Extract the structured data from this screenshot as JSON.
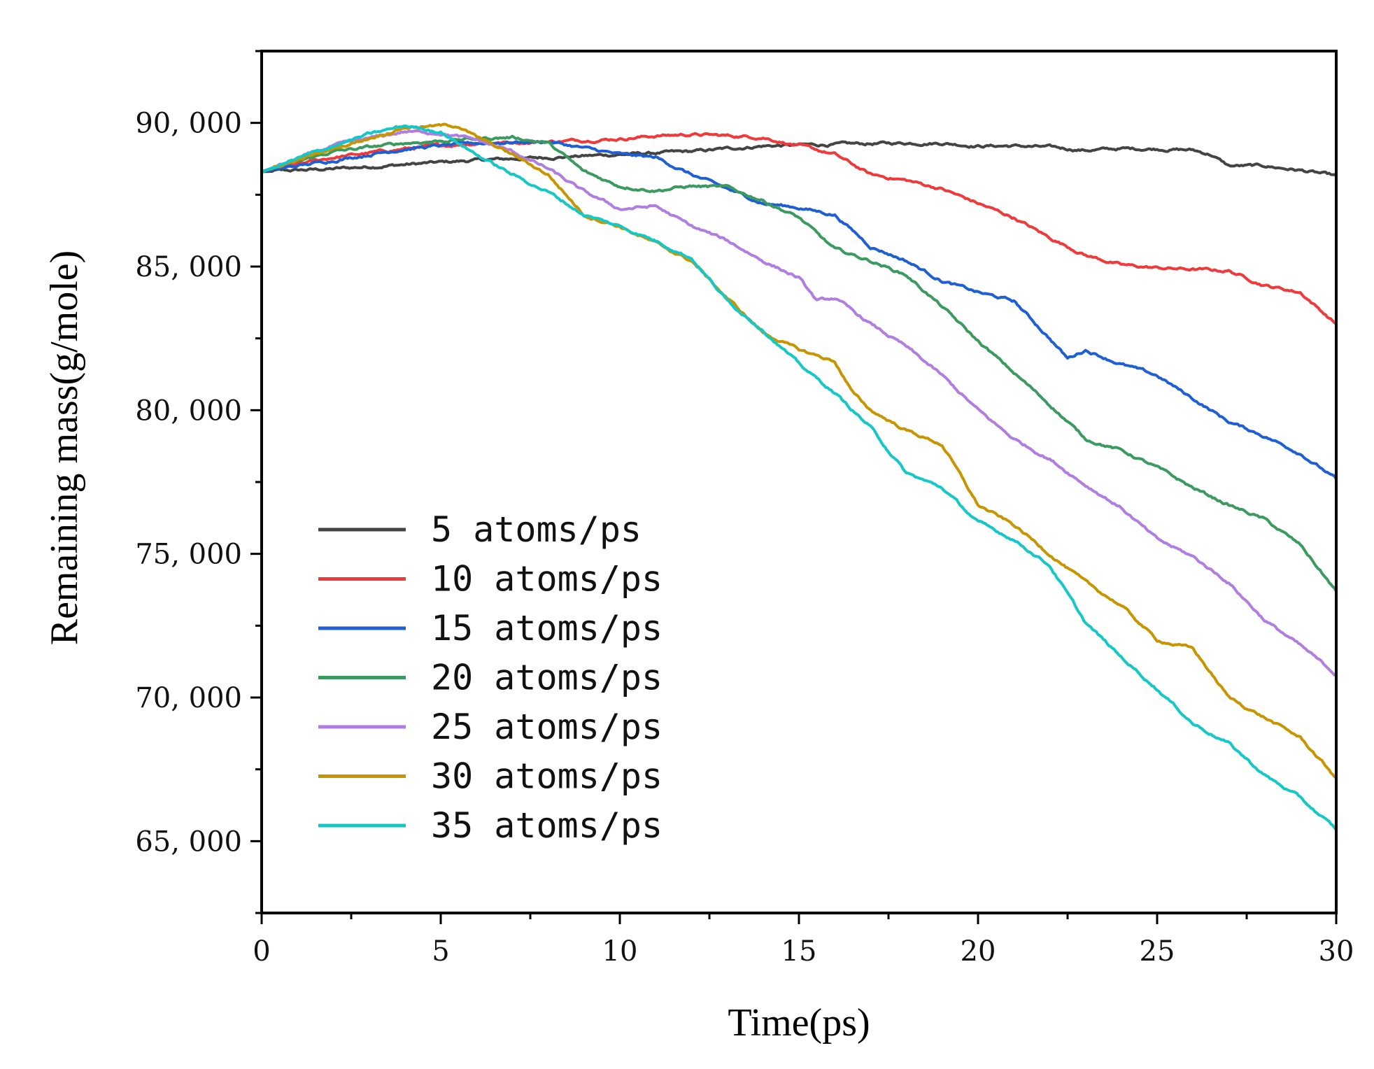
{
  "chart_data": {
    "type": "line",
    "title": "",
    "xlabel": "Time(ps)",
    "ylabel": "Remaining mass(g/mole)",
    "xlim": [
      0,
      30
    ],
    "ylim": [
      62500,
      92500
    ],
    "xticks": [
      0,
      5,
      10,
      15,
      20,
      25,
      30
    ],
    "xtick_labels": [
      "0",
      "5",
      "10",
      "15",
      "20",
      "25",
      "30"
    ],
    "yticks": [
      65000,
      70000,
      75000,
      80000,
      85000,
      90000
    ],
    "ytick_labels": [
      "65, 000",
      "70, 000",
      "75, 000",
      "80, 000",
      "85, 000",
      "90, 000"
    ],
    "grid": false,
    "legend_position": "lower-left",
    "series": [
      {
        "name": "5 atoms/ps",
        "color": "#444444",
        "points": [
          [
            0,
            88300
          ],
          [
            2,
            88400
          ],
          [
            4,
            88550
          ],
          [
            6,
            88700
          ],
          [
            8,
            88800
          ],
          [
            10,
            88900
          ],
          [
            12,
            89000
          ],
          [
            14,
            89200
          ],
          [
            16,
            89250
          ],
          [
            18,
            89300
          ],
          [
            19,
            89300
          ],
          [
            20,
            89200
          ],
          [
            21,
            89200
          ],
          [
            22,
            89150
          ],
          [
            23,
            89050
          ],
          [
            24,
            89100
          ],
          [
            25,
            89100
          ],
          [
            26,
            89050
          ],
          [
            26.5,
            88900
          ],
          [
            27,
            88500
          ],
          [
            28,
            88500
          ],
          [
            29,
            88350
          ],
          [
            30,
            88150
          ]
        ]
      },
      {
        "name": "10 atoms/ps",
        "color": "#ee3a3a",
        "points": [
          [
            0,
            88300
          ],
          [
            2,
            88800
          ],
          [
            4,
            89100
          ],
          [
            6,
            89300
          ],
          [
            8,
            89350
          ],
          [
            10,
            89450
          ],
          [
            11,
            89550
          ],
          [
            12,
            89600
          ],
          [
            13,
            89550
          ],
          [
            14,
            89500
          ],
          [
            15,
            89200
          ],
          [
            16,
            88900
          ],
          [
            17,
            88200
          ],
          [
            18,
            88000
          ],
          [
            19,
            87700
          ],
          [
            20,
            87200
          ],
          [
            21,
            86700
          ],
          [
            22,
            86000
          ],
          [
            23,
            85400
          ],
          [
            24,
            85050
          ],
          [
            25,
            84950
          ],
          [
            26,
            84900
          ],
          [
            27,
            84850
          ],
          [
            28,
            84350
          ],
          [
            29,
            84100
          ],
          [
            30,
            83000
          ]
        ]
      },
      {
        "name": "15 atoms/ps",
        "color": "#1f5fd6",
        "points": [
          [
            0,
            88300
          ],
          [
            2,
            88700
          ],
          [
            4,
            89100
          ],
          [
            6,
            89300
          ],
          [
            8,
            89350
          ],
          [
            10,
            88900
          ],
          [
            11,
            88800
          ],
          [
            12,
            88200
          ],
          [
            13,
            87700
          ],
          [
            14,
            87200
          ],
          [
            15,
            87050
          ],
          [
            16,
            86800
          ],
          [
            17,
            85700
          ],
          [
            18,
            85200
          ],
          [
            19,
            84500
          ],
          [
            20,
            84100
          ],
          [
            21,
            83800
          ],
          [
            22,
            82500
          ],
          [
            22.5,
            81800
          ],
          [
            23,
            82100
          ],
          [
            24,
            81600
          ],
          [
            25,
            81200
          ],
          [
            25.5,
            80800
          ],
          [
            26,
            80400
          ],
          [
            27,
            79600
          ],
          [
            28,
            79100
          ],
          [
            29,
            78500
          ],
          [
            30,
            77600
          ]
        ]
      },
      {
        "name": "20 atoms/ps",
        "color": "#3a9a60",
        "points": [
          [
            0,
            88300
          ],
          [
            2,
            89000
          ],
          [
            4,
            89300
          ],
          [
            6,
            89450
          ],
          [
            7,
            89500
          ],
          [
            8,
            89300
          ],
          [
            9,
            88300
          ],
          [
            10,
            87800
          ],
          [
            11,
            87650
          ],
          [
            12,
            87800
          ],
          [
            13,
            87750
          ],
          [
            14,
            87300
          ],
          [
            15,
            86700
          ],
          [
            16,
            85600
          ],
          [
            17,
            85200
          ],
          [
            18,
            84700
          ],
          [
            19,
            83600
          ],
          [
            20,
            82400
          ],
          [
            21,
            81300
          ],
          [
            22,
            80200
          ],
          [
            23,
            79000
          ],
          [
            24,
            78600
          ],
          [
            25,
            78000
          ],
          [
            26,
            77300
          ],
          [
            27,
            76700
          ],
          [
            28,
            76200
          ],
          [
            29,
            75300
          ],
          [
            30,
            73700
          ]
        ]
      },
      {
        "name": "25 atoms/ps",
        "color": "#b07ee0",
        "points": [
          [
            0,
            88300
          ],
          [
            2,
            89200
          ],
          [
            4,
            89700
          ],
          [
            5,
            89650
          ],
          [
            6,
            89400
          ],
          [
            7,
            89000
          ],
          [
            8,
            88400
          ],
          [
            9,
            87600
          ],
          [
            10,
            87000
          ],
          [
            11,
            87100
          ],
          [
            12,
            86400
          ],
          [
            13,
            85900
          ],
          [
            14,
            85200
          ],
          [
            15,
            84600
          ],
          [
            15.5,
            83800
          ],
          [
            16,
            83900
          ],
          [
            17,
            83000
          ],
          [
            18,
            82200
          ],
          [
            19,
            81200
          ],
          [
            20,
            80000
          ],
          [
            21,
            79000
          ],
          [
            22,
            78300
          ],
          [
            23,
            77400
          ],
          [
            24,
            76600
          ],
          [
            25,
            75500
          ],
          [
            26,
            74900
          ],
          [
            27,
            74000
          ],
          [
            28,
            72700
          ],
          [
            29,
            71800
          ],
          [
            30,
            70800
          ]
        ]
      },
      {
        "name": "30 atoms/ps",
        "color": "#c79500",
        "points": [
          [
            0,
            88300
          ],
          [
            2,
            89100
          ],
          [
            4,
            89850
          ],
          [
            5,
            89900
          ],
          [
            5.5,
            89900
          ],
          [
            6,
            89500
          ],
          [
            7,
            88900
          ],
          [
            8,
            88200
          ],
          [
            9,
            86800
          ],
          [
            10,
            86400
          ],
          [
            11,
            85800
          ],
          [
            12,
            85200
          ],
          [
            13,
            83900
          ],
          [
            14,
            82700
          ],
          [
            15,
            82100
          ],
          [
            16,
            81700
          ],
          [
            16.5,
            80600
          ],
          [
            17,
            80000
          ],
          [
            18,
            79300
          ],
          [
            19,
            78800
          ],
          [
            20,
            76700
          ],
          [
            21,
            76000
          ],
          [
            22,
            75000
          ],
          [
            23,
            74000
          ],
          [
            24,
            73200
          ],
          [
            25,
            72000
          ],
          [
            26,
            71700
          ],
          [
            27,
            70000
          ],
          [
            28,
            69300
          ],
          [
            29,
            68600
          ],
          [
            30,
            67200
          ]
        ]
      },
      {
        "name": "35 atoms/ps",
        "color": "#14c8c8",
        "points": [
          [
            0,
            88300
          ],
          [
            2,
            89200
          ],
          [
            3,
            89600
          ],
          [
            4,
            89900
          ],
          [
            5,
            89700
          ],
          [
            6,
            88900
          ],
          [
            7,
            88200
          ],
          [
            8,
            87600
          ],
          [
            9,
            86800
          ],
          [
            10,
            86400
          ],
          [
            11,
            85900
          ],
          [
            12,
            85300
          ],
          [
            13,
            83800
          ],
          [
            14,
            82800
          ],
          [
            15,
            81600
          ],
          [
            16,
            80600
          ],
          [
            17,
            79400
          ],
          [
            18,
            77800
          ],
          [
            19,
            77300
          ],
          [
            20,
            76100
          ],
          [
            21,
            75500
          ],
          [
            22,
            74600
          ],
          [
            23,
            72600
          ],
          [
            24,
            71400
          ],
          [
            25,
            70300
          ],
          [
            26,
            69100
          ],
          [
            27,
            68400
          ],
          [
            28,
            67300
          ],
          [
            29,
            66500
          ],
          [
            30,
            65400
          ]
        ]
      }
    ]
  }
}
